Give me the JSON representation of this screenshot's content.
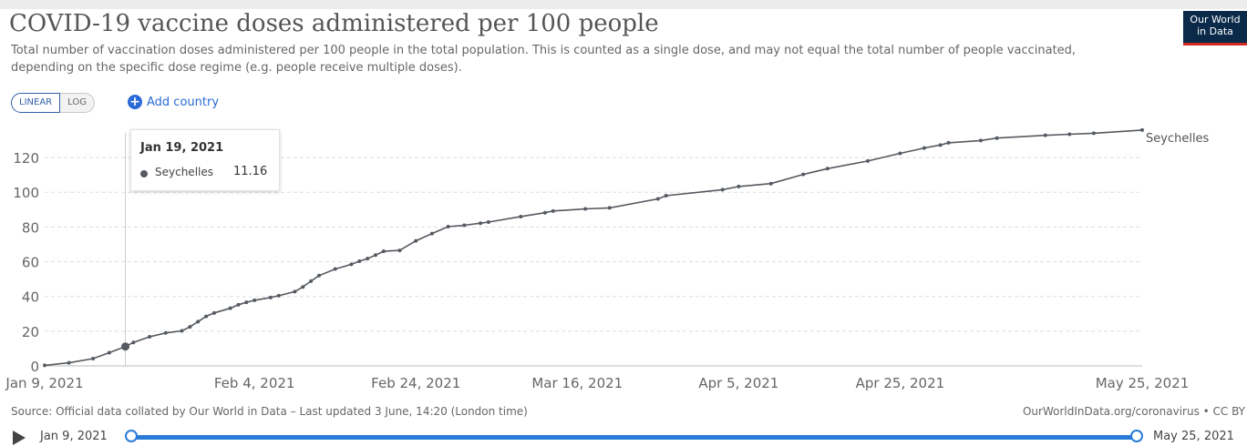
{
  "header": {
    "title": "COVID-19 vaccine doses administered per 100 people",
    "subtitle": "Total number of vaccination doses administered per 100 people in the total population. This is counted as a single dose, and may not equal the total number of people vaccinated, depending on the specific dose regime (e.g. people receive multiple doses).",
    "logo_line1": "Our World",
    "logo_line2": "in Data"
  },
  "controls": {
    "linear_label": "LINEAR",
    "log_label": "LOG",
    "active_scale": "linear",
    "add_country_label": "Add country"
  },
  "tooltip": {
    "date": "Jan 19, 2021",
    "series": "Seychelles",
    "value": "11.16"
  },
  "footer": {
    "source": "Source: Official data collated by Our World in Data – Last updated 3 June, 14:20 (London time)",
    "credit": "OurWorldInData.org/coronavirus • CC BY"
  },
  "timeline": {
    "start_label": "Jan 9, 2021",
    "end_label": "May 25, 2021"
  },
  "colors": {
    "series": "#555a60",
    "grid": "#dddddd",
    "accent": "#2a7bd8"
  },
  "chart_data": {
    "type": "line",
    "title": "COVID-19 vaccine doses administered per 100 people",
    "x_type": "date",
    "xlim": [
      "2021-01-09",
      "2021-05-25"
    ],
    "ylim": [
      0,
      130
    ],
    "y_ticks": [
      0,
      20,
      40,
      60,
      80,
      100,
      120
    ],
    "x_ticks": [
      "2021-01-09",
      "2021-02-04",
      "2021-02-24",
      "2021-03-16",
      "2021-04-05",
      "2021-04-25",
      "2021-05-25"
    ],
    "x_tick_labels": [
      "Jan 9, 2021",
      "Feb 4, 2021",
      "Feb 24, 2021",
      "Mar 16, 2021",
      "Apr 5, 2021",
      "Apr 25, 2021",
      "May 25, 2021"
    ],
    "grid": "horizontal dashed",
    "highlight": {
      "x": "2021-01-19",
      "y": 11.16
    },
    "series": [
      {
        "name": "Seychelles",
        "end_label": "Seychelles",
        "points": [
          [
            "2021-01-09",
            0.3
          ],
          [
            "2021-01-12",
            1.8
          ],
          [
            "2021-01-15",
            4.2
          ],
          [
            "2021-01-17",
            7.6
          ],
          [
            "2021-01-19",
            11.16
          ],
          [
            "2021-01-20",
            13.5
          ],
          [
            "2021-01-22",
            16.8
          ],
          [
            "2021-01-24",
            19.0
          ],
          [
            "2021-01-26",
            20.2
          ],
          [
            "2021-01-27",
            22.5
          ],
          [
            "2021-01-28",
            25.5
          ],
          [
            "2021-01-29",
            28.5
          ],
          [
            "2021-01-30",
            30.5
          ],
          [
            "2021-02-01",
            33.2
          ],
          [
            "2021-02-02",
            35.2
          ],
          [
            "2021-02-03",
            36.6
          ],
          [
            "2021-02-04",
            37.8
          ],
          [
            "2021-02-06",
            39.4
          ],
          [
            "2021-02-07",
            40.4
          ],
          [
            "2021-02-09",
            42.8
          ],
          [
            "2021-02-10",
            45.5
          ],
          [
            "2021-02-11",
            48.8
          ],
          [
            "2021-02-12",
            52.0
          ],
          [
            "2021-02-14",
            55.8
          ],
          [
            "2021-02-16",
            58.5
          ],
          [
            "2021-02-17",
            60.3
          ],
          [
            "2021-02-18",
            61.8
          ],
          [
            "2021-02-19",
            63.8
          ],
          [
            "2021-02-20",
            66.0
          ],
          [
            "2021-02-22",
            66.5
          ],
          [
            "2021-02-24",
            72.0
          ],
          [
            "2021-02-26",
            76.2
          ],
          [
            "2021-02-28",
            80.2
          ],
          [
            "2021-03-02",
            81.0
          ],
          [
            "2021-03-04",
            82.2
          ],
          [
            "2021-03-05",
            82.8
          ],
          [
            "2021-03-09",
            86.0
          ],
          [
            "2021-03-12",
            88.2
          ],
          [
            "2021-03-13",
            89.2
          ],
          [
            "2021-03-17",
            90.4
          ],
          [
            "2021-03-20",
            91.0
          ],
          [
            "2021-03-26",
            96.2
          ],
          [
            "2021-03-27",
            98.0
          ],
          [
            "2021-04-03",
            101.5
          ],
          [
            "2021-04-05",
            103.3
          ],
          [
            "2021-04-09",
            105.0
          ],
          [
            "2021-04-13",
            110.3
          ],
          [
            "2021-04-16",
            113.6
          ],
          [
            "2021-04-21",
            118.0
          ],
          [
            "2021-04-25",
            122.4
          ],
          [
            "2021-04-28",
            125.5
          ],
          [
            "2021-04-30",
            127.2
          ],
          [
            "2021-05-01",
            128.5
          ],
          [
            "2021-05-05",
            129.8
          ],
          [
            "2021-05-07",
            131.2
          ],
          [
            "2021-05-13",
            132.8
          ],
          [
            "2021-05-16",
            133.4
          ],
          [
            "2021-05-19",
            134.0
          ],
          [
            "2021-05-25",
            135.8
          ]
        ]
      }
    ]
  }
}
